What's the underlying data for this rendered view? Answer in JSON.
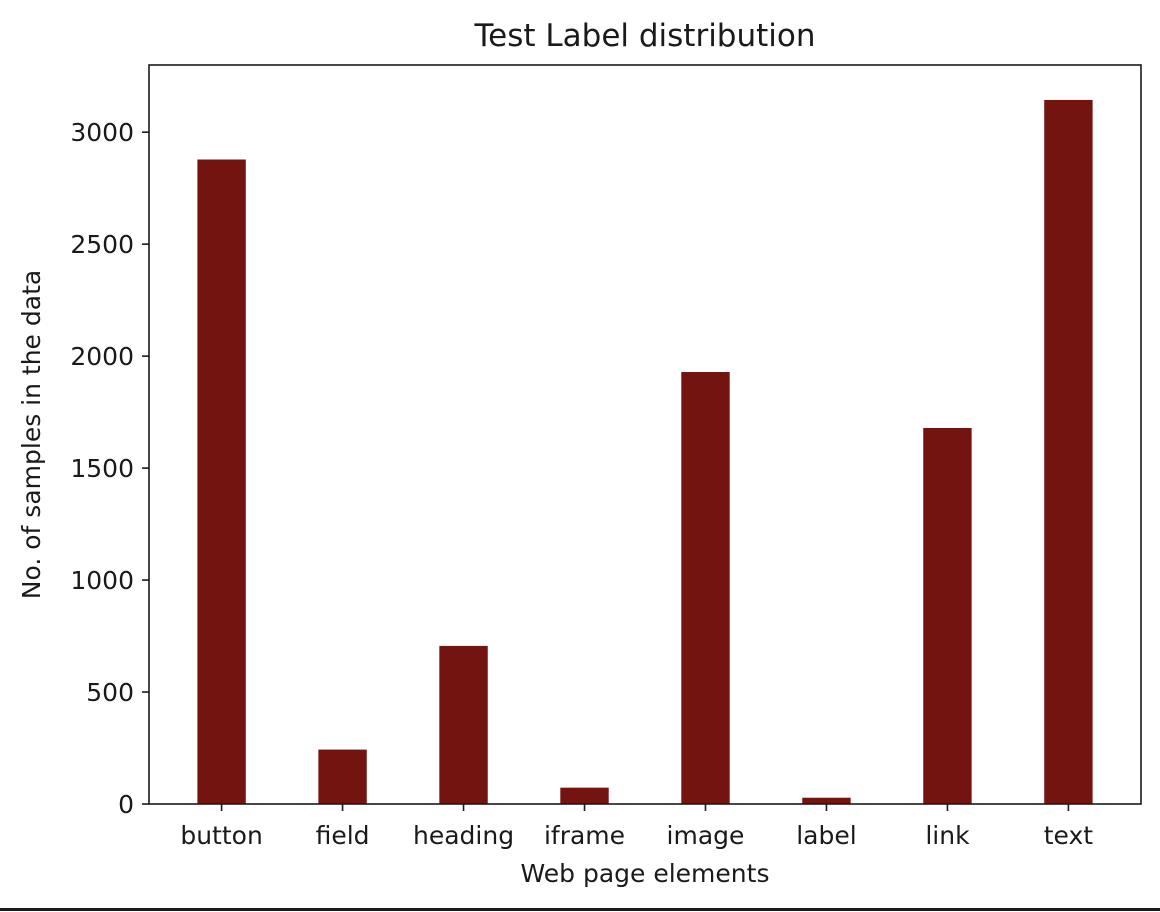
{
  "chart_data": {
    "type": "bar",
    "title": "Test Label distribution",
    "xlabel": "Web page elements",
    "ylabel": "No. of samples in the data",
    "categories": [
      "button",
      "field",
      "heading",
      "iframe",
      "image",
      "label",
      "link",
      "text"
    ],
    "values": [
      2878,
      243,
      706,
      73,
      1929,
      28,
      1679,
      3144
    ],
    "ylim": [
      0,
      3300
    ],
    "yticks": [
      0,
      500,
      1000,
      1500,
      2000,
      2500,
      3000
    ],
    "bar_color": "#731410",
    "grid": false,
    "legend": "none"
  }
}
